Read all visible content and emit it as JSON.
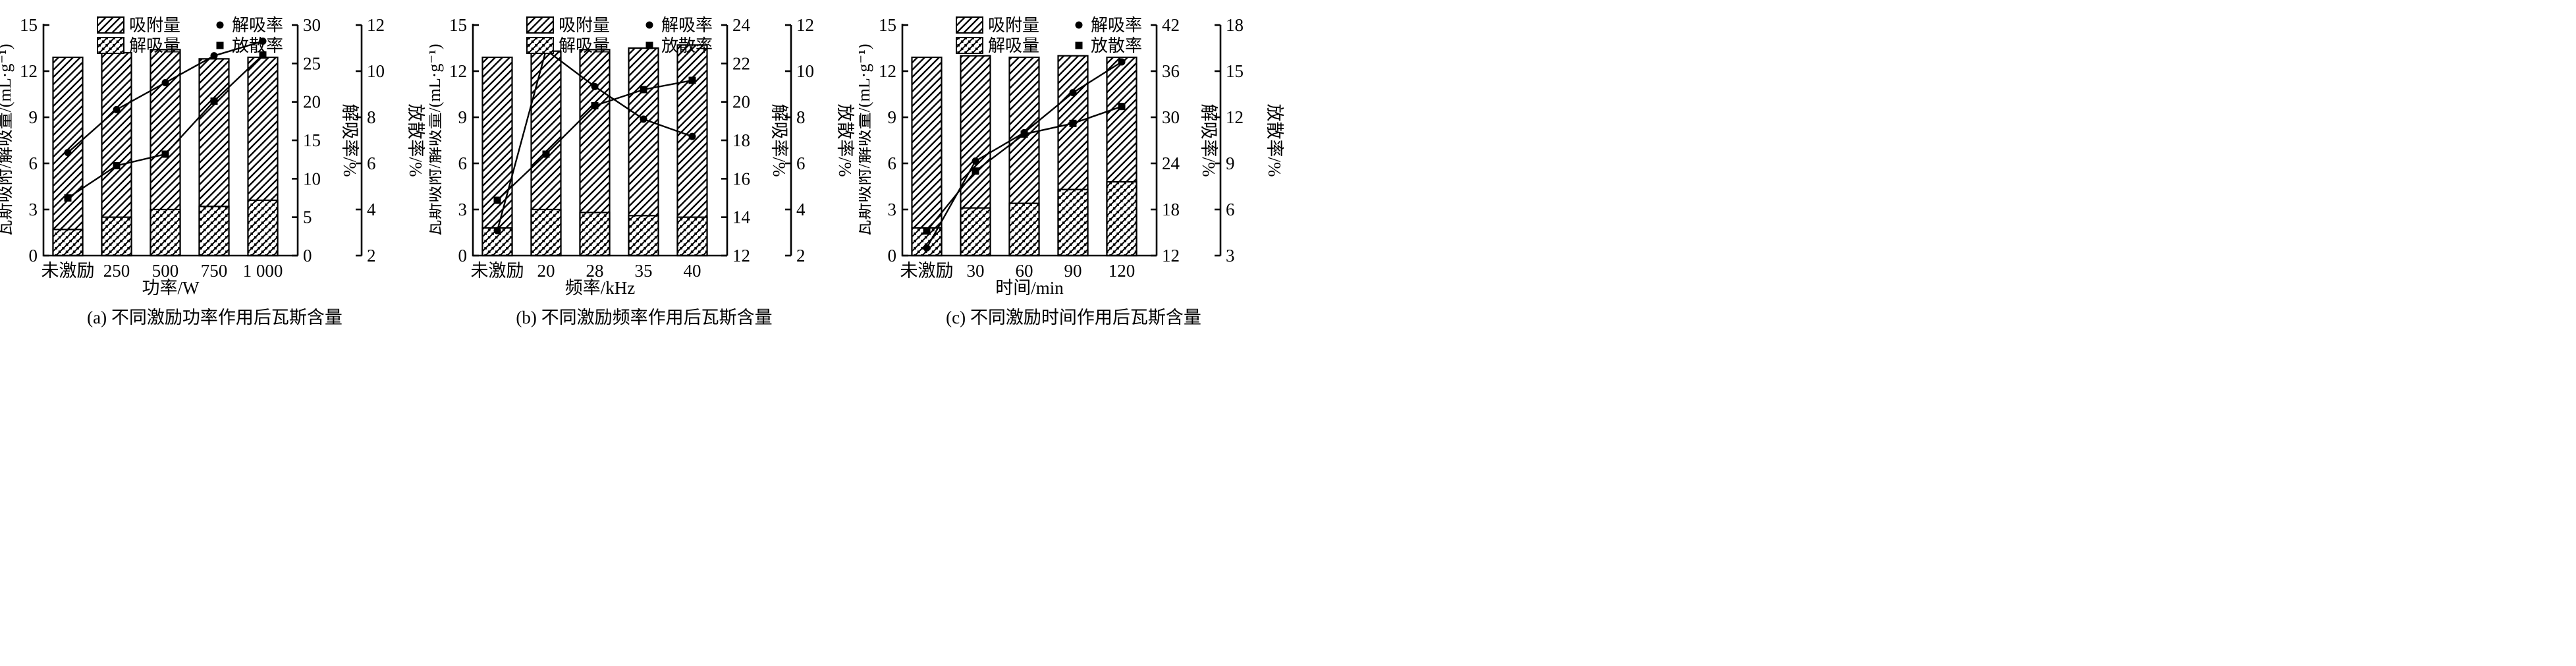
{
  "figure": {
    "background": "#ffffff",
    "ink_color": "#000000"
  },
  "legend": {
    "adsorption": "吸附量",
    "desorption": "解吸量",
    "desorption_rate": "解吸率",
    "release_rate": "放散率"
  },
  "chart_data": [
    {
      "type": "bar",
      "caption": "(a) 不同激励功率作用后瓦斯含量",
      "xlabel": "功率/W",
      "categories": [
        "未激励",
        "250",
        "500",
        "750",
        "1 000"
      ],
      "left_axis": {
        "label": "瓦斯吸附/解吸量/(mL·g⁻¹)",
        "min": 0,
        "max": 15,
        "ticks": [
          0,
          3,
          6,
          9,
          12,
          15
        ]
      },
      "right_axis_1": {
        "label": "解吸率/%",
        "min": 0,
        "max": 30,
        "ticks": [
          0,
          5,
          10,
          15,
          20,
          25,
          30
        ]
      },
      "right_axis_2": {
        "label": "放散率/%",
        "min": 2,
        "max": 12,
        "ticks": [
          2,
          4,
          6,
          8,
          10,
          12
        ]
      },
      "series": [
        {
          "name": "吸附量",
          "type": "bar",
          "pattern": "hatch",
          "axis": "left",
          "values": [
            12.9,
            13.2,
            13.4,
            12.8,
            12.9
          ]
        },
        {
          "name": "解吸量",
          "type": "bar",
          "pattern": "checker",
          "axis": "left",
          "values": [
            1.7,
            2.5,
            3.0,
            3.2,
            3.6
          ]
        },
        {
          "name": "解吸率",
          "type": "line",
          "marker": "circle",
          "axis": "right1",
          "values": [
            13.4,
            19.0,
            22.5,
            26.0,
            27.9
          ]
        },
        {
          "name": "放散率",
          "type": "line",
          "marker": "square",
          "axis": "right2",
          "values": [
            4.5,
            5.9,
            6.4,
            8.7,
            10.7
          ]
        }
      ]
    },
    {
      "type": "bar",
      "caption": "(b) 不同激励频率作用后瓦斯含量",
      "xlabel": "频率/kHz",
      "categories": [
        "未激励",
        "20",
        "28",
        "35",
        "40"
      ],
      "left_axis": {
        "label": "瓦斯吸附/解吸量/(mL·g⁻¹)",
        "min": 0,
        "max": 15,
        "ticks": [
          0,
          3,
          6,
          9,
          12,
          15
        ]
      },
      "right_axis_1": {
        "label": "解吸率/%",
        "min": 12,
        "max": 24,
        "ticks": [
          12,
          14,
          16,
          18,
          20,
          22,
          24
        ]
      },
      "right_axis_2": {
        "label": "放散率/%",
        "min": 2,
        "max": 12,
        "ticks": [
          2,
          4,
          6,
          8,
          10,
          12
        ]
      },
      "series": [
        {
          "name": "吸附量",
          "type": "bar",
          "pattern": "hatch",
          "axis": "left",
          "values": [
            12.9,
            13.3,
            13.4,
            13.5,
            13.7
          ]
        },
        {
          "name": "解吸量",
          "type": "bar",
          "pattern": "checker",
          "axis": "left",
          "values": [
            1.8,
            3.0,
            2.8,
            2.6,
            2.5
          ]
        },
        {
          "name": "解吸率",
          "type": "line",
          "marker": "circle",
          "axis": "right1",
          "values": [
            13.3,
            22.7,
            20.8,
            19.1,
            18.2
          ]
        },
        {
          "name": "放散率",
          "type": "line",
          "marker": "square",
          "axis": "right2",
          "values": [
            4.4,
            6.4,
            8.5,
            9.2,
            9.6
          ]
        }
      ]
    },
    {
      "type": "bar",
      "caption": "(c) 不同激励时间作用后瓦斯含量",
      "xlabel": "时间/min",
      "categories": [
        "未激励",
        "30",
        "60",
        "90",
        "120"
      ],
      "left_axis": {
        "label": "瓦斯吸附/解吸量/(mL·g⁻¹)",
        "min": 0,
        "max": 15,
        "ticks": [
          0,
          3,
          6,
          9,
          12,
          15
        ]
      },
      "right_axis_1": {
        "label": "解吸率/%",
        "min": 12,
        "max": 42,
        "ticks": [
          12,
          18,
          24,
          30,
          36,
          42
        ]
      },
      "right_axis_2": {
        "label": "放散率/%",
        "min": 3,
        "max": 18,
        "ticks": [
          3,
          6,
          9,
          12,
          15,
          18
        ]
      },
      "series": [
        {
          "name": "吸附量",
          "type": "bar",
          "pattern": "hatch",
          "axis": "left",
          "values": [
            12.9,
            13.0,
            12.9,
            13.0,
            12.9
          ]
        },
        {
          "name": "解吸量",
          "type": "bar",
          "pattern": "checker",
          "axis": "left",
          "values": [
            1.8,
            3.1,
            3.4,
            4.3,
            4.8
          ]
        },
        {
          "name": "解吸率",
          "type": "line",
          "marker": "circle",
          "axis": "right1",
          "values": [
            13.0,
            24.3,
            28.0,
            33.2,
            37.2
          ]
        },
        {
          "name": "放散率",
          "type": "line",
          "marker": "square",
          "axis": "right2",
          "values": [
            4.6,
            8.5,
            10.9,
            11.6,
            12.7
          ]
        }
      ]
    }
  ]
}
